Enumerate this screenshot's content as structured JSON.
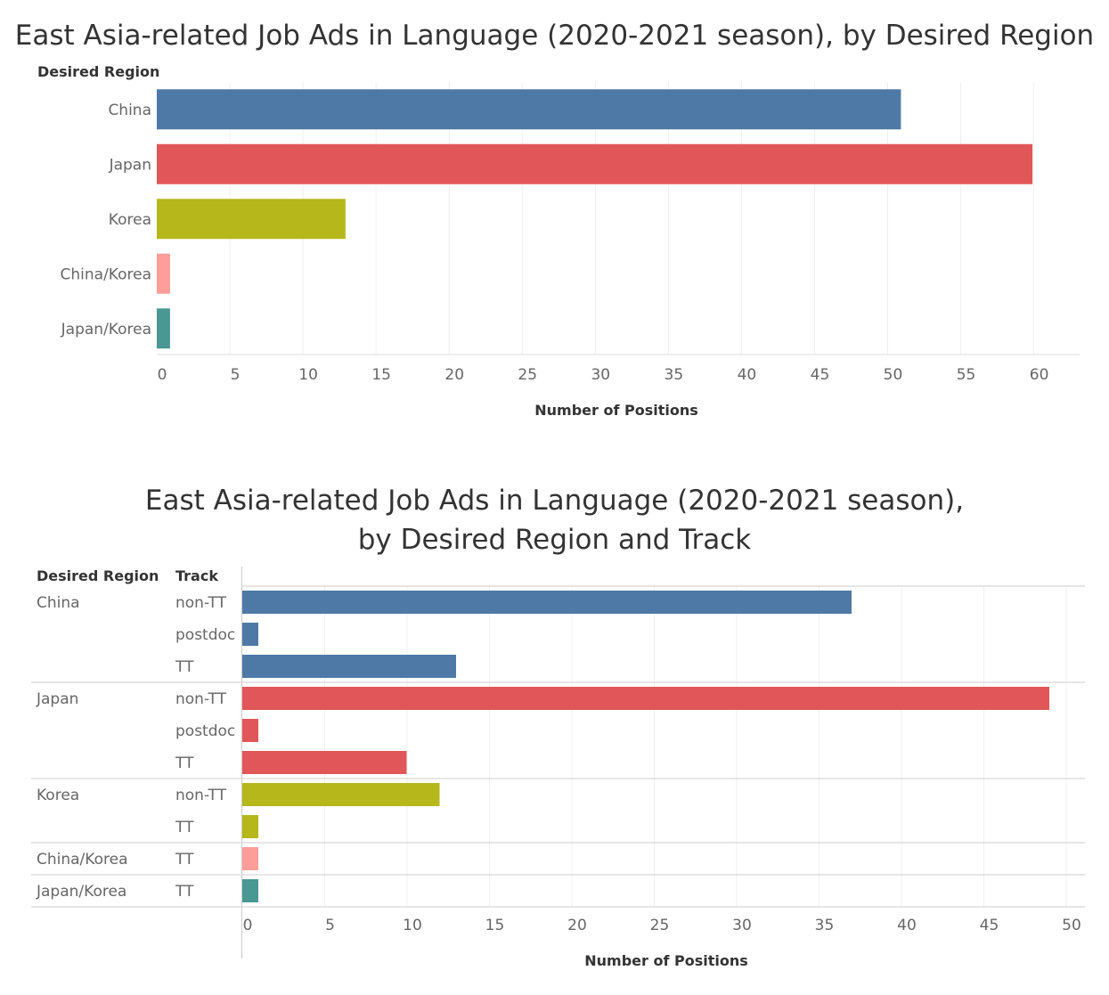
{
  "chart_data": [
    {
      "type": "bar",
      "orientation": "horizontal",
      "title": "East Asia-related Job Ads in Language (2020-2021 season), by Desired Region",
      "row_header": "Desired Region",
      "xlabel": "Number of Positions",
      "xlim": [
        0,
        63
      ],
      "xticks": [
        0,
        5,
        10,
        15,
        20,
        25,
        30,
        35,
        40,
        45,
        50,
        55,
        60
      ],
      "grid": "vertical",
      "categories": [
        "China",
        "Japan",
        "Korea",
        "China/Korea",
        "Japan/Korea"
      ],
      "values": [
        51,
        60,
        13,
        1,
        1
      ],
      "colors": [
        "#4e79a7",
        "#e15759",
        "#b5b71b",
        "#ff9d9a",
        "#499894"
      ]
    },
    {
      "type": "bar",
      "orientation": "horizontal",
      "title_lines": [
        "East Asia-related Job Ads in Language (2020-2021 season),",
        "by Desired Region and Track"
      ],
      "row_headers": [
        "Desired Region",
        "Track"
      ],
      "xlabel": "Number of Positions",
      "xlim": [
        0,
        51
      ],
      "xticks": [
        0,
        5,
        10,
        15,
        20,
        25,
        30,
        35,
        40,
        45,
        50
      ],
      "grid": "vertical",
      "groups": [
        {
          "region": "China",
          "color": "#4e79a7",
          "tracks": [
            "non-TT",
            "postdoc",
            "TT"
          ],
          "values": [
            37,
            1,
            13
          ]
        },
        {
          "region": "Japan",
          "color": "#e15759",
          "tracks": [
            "non-TT",
            "postdoc",
            "TT"
          ],
          "values": [
            49,
            1,
            10
          ]
        },
        {
          "region": "Korea",
          "color": "#b5b71b",
          "tracks": [
            "non-TT",
            "TT"
          ],
          "values": [
            12,
            1
          ]
        },
        {
          "region": "China/Korea",
          "color": "#ff9d9a",
          "tracks": [
            "TT"
          ],
          "values": [
            1
          ]
        },
        {
          "region": "Japan/Korea",
          "color": "#499894",
          "tracks": [
            "TT"
          ],
          "values": [
            1
          ]
        }
      ]
    }
  ]
}
